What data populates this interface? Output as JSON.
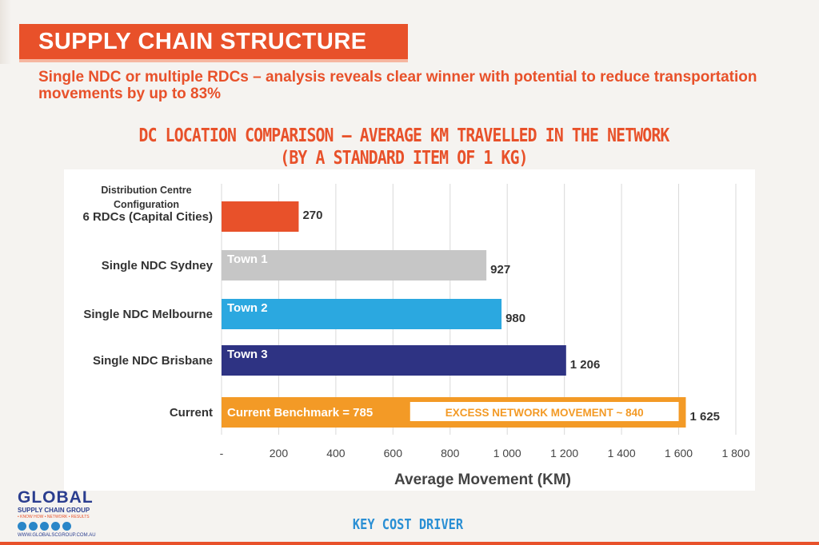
{
  "slide": {
    "title": "SUPPLY CHAIN STRUCTURE",
    "subtitle": "Single NDC or multiple RDCs – analysis reveals clear winner with potential to reduce transportation movements by up to 83%",
    "chart_heading_line1": "DC LOCATION COMPARISON – AVERAGE KM TRAVELLED IN THE NETWORK",
    "chart_heading_line2": "(BY A STANDARD ITEM OF 1 KG)",
    "footer_label": "KEY COST DRIVER"
  },
  "logo": {
    "word": "GLOBAL",
    "sub": "SUPPLY CHAIN GROUP",
    "tag": "• KNOW HOW • NETWORK • RESULTS",
    "url": "WWW.GLOBALSCGROUP.COM.AU"
  },
  "colors": {
    "accent": "#e8512a",
    "sydney": "#c6c6c6",
    "melbourne": "#2ba8e0",
    "brisbane": "#2e3383",
    "current": "#f39a26",
    "key_driver": "#2a8fd4"
  },
  "chart_data": {
    "type": "bar",
    "orientation": "horizontal",
    "title": "",
    "category_axis_title": "Distribution Centre Configuration",
    "xlabel": "Average Movement (KM)",
    "xlim": [
      0,
      1800
    ],
    "xticks": [
      "-",
      "200",
      "400",
      "600",
      "800",
      "1 000",
      "1 200",
      "1 400",
      "1 600",
      "1 800"
    ],
    "grid": true,
    "categories": [
      "6 RDCs (Capital Cities)",
      "Single NDC Sydney",
      "Single NDC Melbourne",
      "Single NDC Brisbane",
      "Current"
    ],
    "values": [
      270,
      927,
      980,
      1206,
      1625
    ],
    "value_labels": [
      "270",
      "927",
      "980",
      "1 206",
      "1 625"
    ],
    "bar_labels": [
      "",
      "Town 1",
      "Town 2",
      "Town 3",
      "Current Benchmark = 785"
    ],
    "colors": [
      "#e8512a",
      "#c6c6c6",
      "#2ba8e0",
      "#2e3383",
      "#f39a26"
    ],
    "annotation": {
      "text": "EXCESS NETWORK MOVEMENT ~ 840",
      "from": 660,
      "to": 1600
    }
  }
}
